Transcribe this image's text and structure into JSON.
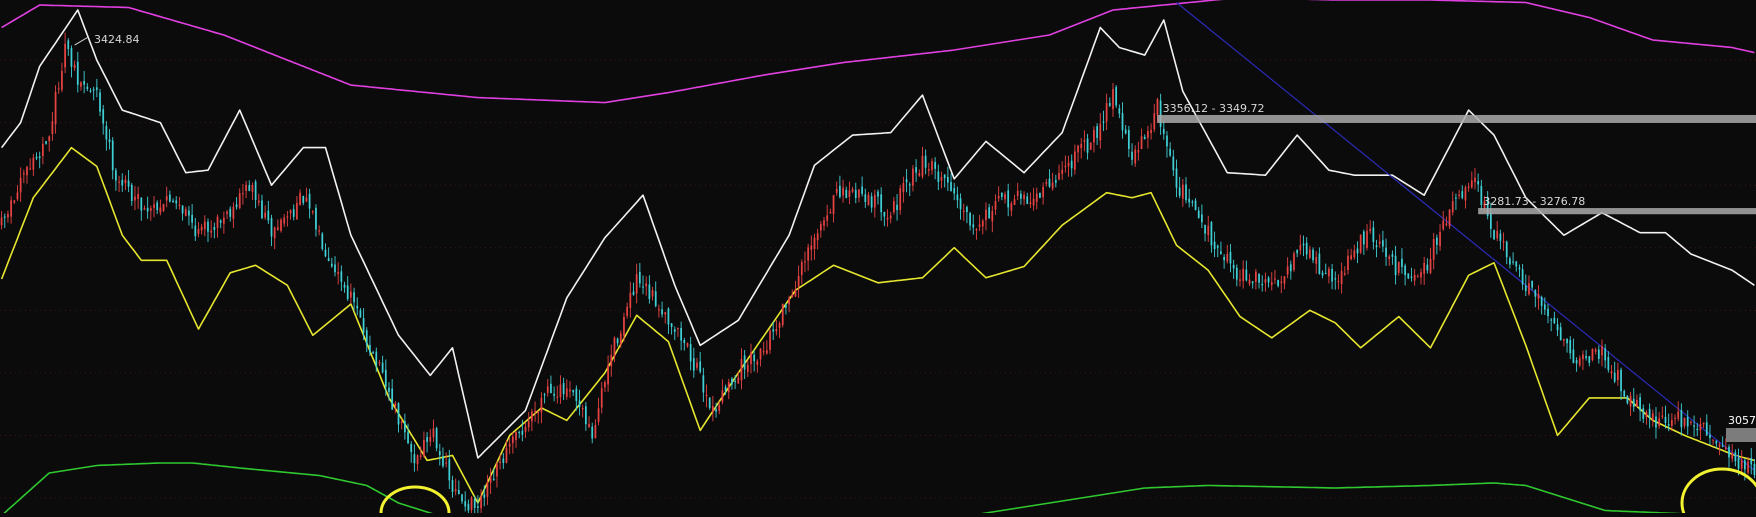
{
  "chart_data": {
    "type": "candlestick",
    "y_range": [
      3038,
      3448
    ],
    "grid": true,
    "background": "#0b0b0c",
    "colors": {
      "up": "#e84343",
      "down": "#3fd0d6",
      "upper_band_outer": "#e040e0",
      "lower_band_outer": "#2fc92f",
      "upper_band_inner": "#f2f2f2",
      "lower_band_inner": "#e6e62e",
      "trendline": "#2b2bb8",
      "resistance": "#aaaaaa",
      "highlight_circle": "#f2f230",
      "price_tag_fill": "#7c7c7c"
    },
    "annotations": {
      "peak_label": "3424.84",
      "resistance_1_label": "3356.12 - 3349.72",
      "resistance_2_label": "3281.73 - 3276.78",
      "last_price_label": "3057"
    },
    "resistance_zones": [
      {
        "label": "3356.12 - 3349.72",
        "high": 3356.12,
        "low": 3349.72
      },
      {
        "label": "3281.73 - 3276.78",
        "high": 3281.73,
        "low": 3276.78
      }
    ],
    "trendline_points": [
      [
        3440,
        3444
      ],
      [
        3300,
        3304
      ],
      [
        3200,
        3204
      ],
      [
        3100,
        3104
      ],
      [
        3070,
        3074
      ]
    ],
    "highlight_circles": 2,
    "close_waypoints": [
      [
        0,
        3268
      ],
      [
        8,
        3310
      ],
      [
        15,
        3340
      ],
      [
        20,
        3412
      ],
      [
        24,
        3382
      ],
      [
        30,
        3372
      ],
      [
        36,
        3308
      ],
      [
        45,
        3282
      ],
      [
        55,
        3290
      ],
      [
        62,
        3262
      ],
      [
        70,
        3275
      ],
      [
        78,
        3300
      ],
      [
        85,
        3262
      ],
      [
        95,
        3290
      ],
      [
        102,
        3250
      ],
      [
        110,
        3210
      ],
      [
        120,
        3145
      ],
      [
        130,
        3080
      ],
      [
        136,
        3105
      ],
      [
        142,
        3055
      ],
      [
        150,
        3040
      ],
      [
        158,
        3082
      ],
      [
        166,
        3112
      ],
      [
        172,
        3140
      ],
      [
        180,
        3130
      ],
      [
        186,
        3100
      ],
      [
        192,
        3165
      ],
      [
        200,
        3222
      ],
      [
        208,
        3202
      ],
      [
        216,
        3170
      ],
      [
        224,
        3120
      ],
      [
        232,
        3152
      ],
      [
        240,
        3170
      ],
      [
        248,
        3210
      ],
      [
        256,
        3255
      ],
      [
        262,
        3290
      ],
      [
        270,
        3296
      ],
      [
        280,
        3278
      ],
      [
        290,
        3320
      ],
      [
        298,
        3302
      ],
      [
        306,
        3270
      ],
      [
        316,
        3288
      ],
      [
        326,
        3290
      ],
      [
        334,
        3312
      ],
      [
        344,
        3338
      ],
      [
        350,
        3376
      ],
      [
        356,
        3318
      ],
      [
        364,
        3362
      ],
      [
        370,
        3302
      ],
      [
        380,
        3262
      ],
      [
        390,
        3228
      ],
      [
        400,
        3220
      ],
      [
        410,
        3250
      ],
      [
        420,
        3222
      ],
      [
        430,
        3262
      ],
      [
        440,
        3232
      ],
      [
        448,
        3232
      ],
      [
        456,
        3282
      ],
      [
        464,
        3300
      ],
      [
        470,
        3262
      ],
      [
        480,
        3218
      ],
      [
        488,
        3195
      ],
      [
        496,
        3160
      ],
      [
        504,
        3168
      ],
      [
        512,
        3132
      ],
      [
        520,
        3112
      ],
      [
        530,
        3113
      ],
      [
        540,
        3098
      ],
      [
        546,
        3080
      ],
      [
        552,
        3070
      ]
    ],
    "band_waypoints": {
      "upper_outer": [
        [
          0,
          3426
        ],
        [
          12,
          3444
        ],
        [
          40,
          3442
        ],
        [
          70,
          3420
        ],
        [
          110,
          3380
        ],
        [
          150,
          3370
        ],
        [
          190,
          3366
        ],
        [
          210,
          3374
        ],
        [
          240,
          3388
        ],
        [
          265,
          3398
        ],
        [
          300,
          3408
        ],
        [
          330,
          3420
        ],
        [
          350,
          3440
        ],
        [
          390,
          3450
        ],
        [
          420,
          3448
        ],
        [
          450,
          3448
        ],
        [
          480,
          3446
        ],
        [
          500,
          3434
        ],
        [
          520,
          3416
        ],
        [
          545,
          3410
        ],
        [
          552,
          3406
        ]
      ],
      "upper_inner": [
        [
          0,
          3330
        ],
        [
          6,
          3350
        ],
        [
          12,
          3395
        ],
        [
          24,
          3440
        ],
        [
          30,
          3400
        ],
        [
          38,
          3360
        ],
        [
          50,
          3350
        ],
        [
          58,
          3310
        ],
        [
          65,
          3312
        ],
        [
          75,
          3360
        ],
        [
          85,
          3300
        ],
        [
          95,
          3330
        ],
        [
          102,
          3330
        ],
        [
          110,
          3260
        ],
        [
          125,
          3180
        ],
        [
          135,
          3148
        ],
        [
          142,
          3170
        ],
        [
          150,
          3082
        ],
        [
          165,
          3120
        ],
        [
          178,
          3210
        ],
        [
          190,
          3258
        ],
        [
          202,
          3292
        ],
        [
          212,
          3220
        ],
        [
          220,
          3172
        ],
        [
          232,
          3192
        ],
        [
          248,
          3260
        ],
        [
          256,
          3316
        ],
        [
          268,
          3340
        ],
        [
          280,
          3342
        ],
        [
          290,
          3372
        ],
        [
          300,
          3305
        ],
        [
          310,
          3335
        ],
        [
          322,
          3310
        ],
        [
          334,
          3342
        ],
        [
          346,
          3426
        ],
        [
          352,
          3410
        ],
        [
          360,
          3404
        ],
        [
          366,
          3432
        ],
        [
          372,
          3375
        ],
        [
          386,
          3310
        ],
        [
          398,
          3308
        ],
        [
          408,
          3340
        ],
        [
          418,
          3312
        ],
        [
          426,
          3308
        ],
        [
          438,
          3308
        ],
        [
          448,
          3292
        ],
        [
          462,
          3360
        ],
        [
          470,
          3340
        ],
        [
          480,
          3290
        ],
        [
          492,
          3260
        ],
        [
          504,
          3278
        ],
        [
          516,
          3262
        ],
        [
          524,
          3262
        ],
        [
          532,
          3245
        ],
        [
          545,
          3232
        ],
        [
          552,
          3220
        ]
      ],
      "lower_inner": [
        [
          0,
          3225
        ],
        [
          10,
          3290
        ],
        [
          22,
          3330
        ],
        [
          30,
          3315
        ],
        [
          38,
          3260
        ],
        [
          44,
          3240
        ],
        [
          52,
          3240
        ],
        [
          62,
          3185
        ],
        [
          72,
          3230
        ],
        [
          80,
          3236
        ],
        [
          90,
          3220
        ],
        [
          98,
          3180
        ],
        [
          110,
          3205
        ],
        [
          122,
          3130
        ],
        [
          134,
          3080
        ],
        [
          142,
          3084
        ],
        [
          150,
          3046
        ],
        [
          160,
          3100
        ],
        [
          170,
          3122
        ],
        [
          178,
          3112
        ],
        [
          190,
          3150
        ],
        [
          200,
          3196
        ],
        [
          210,
          3175
        ],
        [
          220,
          3104
        ],
        [
          232,
          3150
        ],
        [
          250,
          3216
        ],
        [
          262,
          3236
        ],
        [
          276,
          3222
        ],
        [
          290,
          3226
        ],
        [
          300,
          3250
        ],
        [
          310,
          3226
        ],
        [
          322,
          3235
        ],
        [
          334,
          3268
        ],
        [
          348,
          3294
        ],
        [
          356,
          3290
        ],
        [
          362,
          3294
        ],
        [
          370,
          3252
        ],
        [
          380,
          3232
        ],
        [
          390,
          3195
        ],
        [
          400,
          3178
        ],
        [
          412,
          3200
        ],
        [
          420,
          3190
        ],
        [
          428,
          3170
        ],
        [
          440,
          3195
        ],
        [
          450,
          3170
        ],
        [
          462,
          3228
        ],
        [
          470,
          3238
        ],
        [
          480,
          3172
        ],
        [
          490,
          3100
        ],
        [
          500,
          3130
        ],
        [
          512,
          3130
        ],
        [
          520,
          3112
        ],
        [
          530,
          3100
        ],
        [
          546,
          3084
        ],
        [
          552,
          3080
        ]
      ],
      "lower_outer": [
        [
          0,
          3036
        ],
        [
          15,
          3070
        ],
        [
          30,
          3076
        ],
        [
          50,
          3078
        ],
        [
          60,
          3078
        ],
        [
          75,
          3074
        ],
        [
          100,
          3068
        ],
        [
          115,
          3060
        ],
        [
          125,
          3046
        ],
        [
          140,
          3034
        ],
        [
          300,
          3034
        ],
        [
          340,
          3050
        ],
        [
          360,
          3058
        ],
        [
          380,
          3060
        ],
        [
          420,
          3058
        ],
        [
          450,
          3060
        ],
        [
          470,
          3062
        ],
        [
          480,
          3060
        ],
        [
          490,
          3052
        ],
        [
          505,
          3040
        ],
        [
          552,
          3035
        ]
      ]
    }
  }
}
